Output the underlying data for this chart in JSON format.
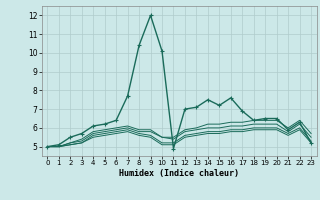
{
  "title": "",
  "xlabel": "Humidex (Indice chaleur)",
  "ylabel": "",
  "bg_color": "#cce8e8",
  "grid_color": "#b0cccc",
  "line_color": "#1a6b5a",
  "xlim": [
    -0.5,
    23.5
  ],
  "ylim": [
    4.5,
    12.5
  ],
  "yticks": [
    5,
    6,
    7,
    8,
    9,
    10,
    11,
    12
  ],
  "xticks": [
    0,
    1,
    2,
    3,
    4,
    5,
    6,
    7,
    8,
    9,
    10,
    11,
    12,
    13,
    14,
    15,
    16,
    17,
    18,
    19,
    20,
    21,
    22,
    23
  ],
  "series": [
    [
      5.0,
      5.1,
      5.5,
      5.7,
      6.1,
      6.2,
      6.4,
      7.7,
      10.4,
      12.0,
      10.1,
      4.9,
      7.0,
      7.1,
      7.5,
      7.2,
      7.6,
      6.9,
      6.4,
      6.5,
      6.5,
      5.9,
      6.3,
      5.2
    ],
    [
      5.0,
      5.0,
      5.2,
      5.4,
      5.8,
      5.9,
      6.0,
      6.1,
      5.9,
      5.9,
      5.5,
      5.5,
      5.9,
      6.0,
      6.2,
      6.2,
      6.3,
      6.3,
      6.4,
      6.4,
      6.4,
      6.0,
      6.4,
      5.7
    ],
    [
      5.0,
      5.0,
      5.2,
      5.3,
      5.7,
      5.8,
      5.9,
      6.0,
      5.8,
      5.8,
      5.5,
      5.4,
      5.8,
      5.9,
      6.0,
      6.0,
      6.1,
      6.1,
      6.2,
      6.2,
      6.2,
      5.8,
      6.2,
      5.5
    ],
    [
      5.0,
      5.0,
      5.1,
      5.2,
      5.6,
      5.7,
      5.8,
      5.9,
      5.7,
      5.6,
      5.2,
      5.2,
      5.6,
      5.7,
      5.8,
      5.8,
      5.9,
      5.9,
      6.0,
      6.0,
      6.0,
      5.7,
      6.0,
      5.3
    ],
    [
      5.0,
      5.0,
      5.1,
      5.2,
      5.5,
      5.6,
      5.7,
      5.8,
      5.6,
      5.5,
      5.1,
      5.1,
      5.5,
      5.6,
      5.7,
      5.7,
      5.8,
      5.8,
      5.9,
      5.9,
      5.9,
      5.6,
      5.9,
      5.2
    ]
  ]
}
